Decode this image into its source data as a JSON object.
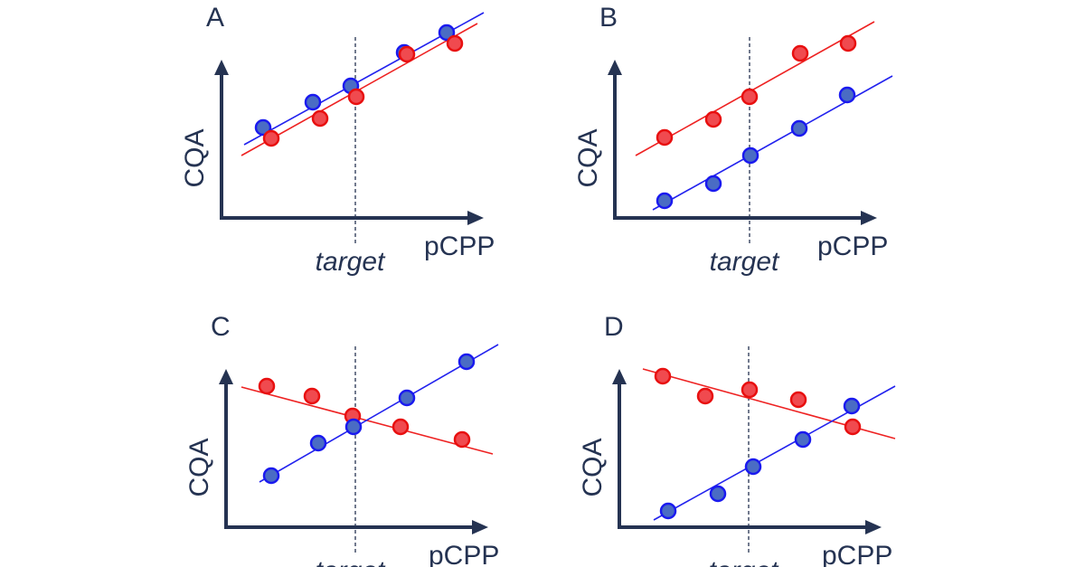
{
  "panels": [
    {
      "label": "A",
      "y_label": "CQA",
      "x_label": "pCPP",
      "marker": "target"
    },
    {
      "label": "B",
      "y_label": "CQA",
      "x_label": "pCPP",
      "marker": "target"
    },
    {
      "label": "C",
      "y_label": "CQA",
      "x_label": "pCPP",
      "marker": "target"
    },
    {
      "label": "D",
      "y_label": "CQA",
      "x_label": "pCPP",
      "marker": "target"
    }
  ]
}
